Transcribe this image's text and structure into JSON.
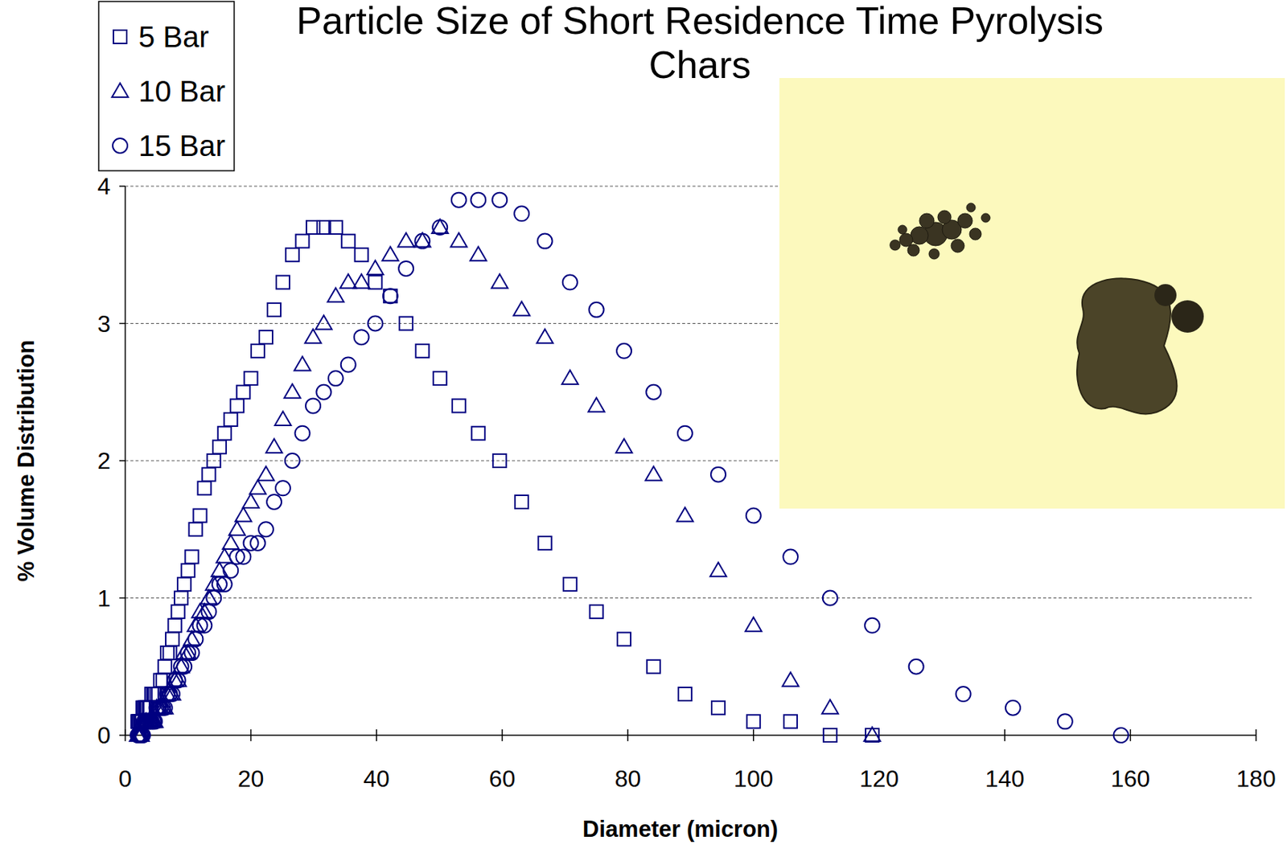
{
  "chart_data": {
    "type": "scatter",
    "title": "Particle Size of Short Residence Time Pyrolysis Chars",
    "x_label": "Diameter (micron)",
    "y_label": "% Volume Distribution",
    "xlim": [
      0,
      180
    ],
    "xticks": [
      0,
      20,
      40,
      60,
      80,
      100,
      120,
      140,
      160,
      180
    ],
    "ylim": [
      0,
      4
    ],
    "yticks": [
      0,
      1,
      2,
      3,
      4
    ],
    "grid": true,
    "legend": "top-left",
    "x": [
      2.0,
      2.1,
      2.2,
      2.4,
      2.5,
      2.7,
      2.8,
      3.0,
      3.2,
      3.3,
      3.5,
      3.8,
      4.0,
      4.2,
      4.5,
      4.7,
      5.0,
      5.3,
      5.6,
      6.0,
      6.3,
      6.7,
      7.1,
      7.5,
      7.9,
      8.4,
      8.9,
      9.4,
      10.0,
      10.6,
      11.2,
      11.9,
      12.6,
      13.3,
      14.1,
      15.0,
      15.8,
      16.8,
      17.8,
      18.8,
      20.0,
      21.1,
      22.4,
      23.7,
      25.1,
      26.6,
      28.2,
      29.9,
      31.6,
      33.5,
      35.5,
      37.6,
      39.8,
      42.2,
      44.7,
      47.3,
      50.1,
      53.1,
      56.2,
      59.6,
      63.1,
      66.8,
      70.8,
      75.0,
      79.4,
      84.1,
      89.1,
      94.4,
      100.0,
      105.9,
      112.2,
      118.9,
      125.9,
      133.4,
      141.3,
      149.6,
      158.5
    ],
    "series": [
      {
        "name": "5 Bar",
        "color": "#000080",
        "marker": "square",
        "values": [
          0.1,
          0.1,
          0.1,
          0.1,
          0.1,
          0.1,
          0.2,
          0.2,
          0.2,
          0.2,
          0.2,
          0.2,
          0.2,
          0.3,
          0.3,
          0.3,
          0.3,
          0.3,
          0.4,
          0.4,
          0.5,
          0.6,
          0.6,
          0.7,
          0.8,
          0.9,
          1.0,
          1.1,
          1.2,
          1.3,
          1.5,
          1.6,
          1.8,
          1.9,
          2.0,
          2.1,
          2.2,
          2.3,
          2.4,
          2.5,
          2.6,
          2.8,
          2.9,
          3.1,
          3.3,
          3.5,
          3.6,
          3.7,
          3.7,
          3.7,
          3.6,
          3.5,
          3.3,
          3.2,
          3.0,
          2.8,
          2.6,
          2.4,
          2.2,
          2.0,
          1.7,
          1.4,
          1.1,
          0.9,
          0.7,
          0.5,
          0.3,
          0.2,
          0.1,
          0.1,
          0.0,
          0.0,
          null,
          null,
          null,
          null,
          null
        ]
      },
      {
        "name": "10 Bar",
        "color": "#000080",
        "marker": "triangle",
        "values": [
          0.0,
          0.0,
          0.0,
          0.0,
          0.0,
          0.1,
          0.1,
          0.1,
          0.1,
          0.1,
          0.1,
          0.1,
          0.1,
          0.1,
          0.1,
          0.1,
          0.2,
          0.2,
          0.2,
          0.2,
          0.2,
          0.3,
          0.3,
          0.3,
          0.4,
          0.4,
          0.5,
          0.6,
          0.6,
          0.7,
          0.8,
          0.9,
          0.9,
          1.0,
          1.1,
          1.2,
          1.3,
          1.4,
          1.5,
          1.6,
          1.7,
          1.8,
          1.9,
          2.1,
          2.3,
          2.5,
          2.7,
          2.9,
          3.0,
          3.2,
          3.3,
          3.3,
          3.4,
          3.5,
          3.6,
          3.6,
          3.7,
          3.6,
          3.5,
          3.3,
          3.1,
          2.9,
          2.6,
          2.4,
          2.1,
          1.9,
          1.6,
          1.2,
          0.8,
          0.4,
          0.2,
          0.0,
          null,
          null,
          null,
          null,
          null
        ]
      },
      {
        "name": "15 Bar",
        "color": "#000080",
        "marker": "circle",
        "values": [
          0.0,
          0.0,
          0.0,
          0.0,
          0.0,
          0.0,
          0.0,
          0.1,
          0.1,
          0.1,
          0.1,
          0.1,
          0.1,
          0.1,
          0.1,
          0.1,
          0.2,
          0.2,
          0.2,
          0.2,
          0.2,
          0.3,
          0.3,
          0.3,
          0.4,
          0.4,
          0.5,
          0.5,
          0.6,
          0.6,
          0.7,
          0.8,
          0.8,
          0.9,
          1.0,
          1.1,
          1.1,
          1.2,
          1.3,
          1.3,
          1.4,
          1.4,
          1.5,
          1.7,
          1.8,
          2.0,
          2.2,
          2.4,
          2.5,
          2.6,
          2.7,
          2.9,
          3.0,
          3.2,
          3.4,
          3.6,
          3.7,
          3.9,
          3.9,
          3.9,
          3.8,
          3.6,
          3.3,
          3.1,
          2.8,
          2.5,
          2.2,
          1.9,
          1.6,
          1.3,
          1.0,
          0.8,
          0.5,
          0.3,
          0.2,
          0.1,
          0.0
        ]
      }
    ]
  }
}
